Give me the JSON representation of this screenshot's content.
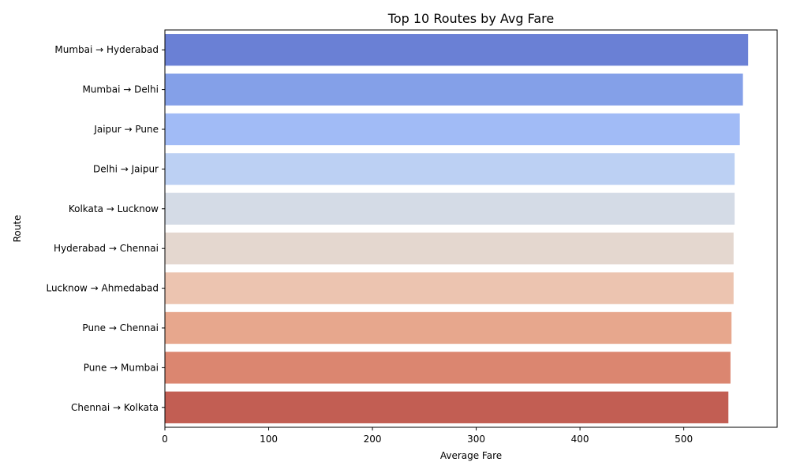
{
  "chart_data": {
    "type": "bar",
    "orientation": "horizontal",
    "title": "Top 10 Routes by Avg Fare",
    "xlabel": "Average Fare",
    "ylabel": "Route",
    "xlim": [
      0,
      590
    ],
    "xticks": [
      "0",
      "100",
      "200",
      "300",
      "400",
      "500"
    ],
    "grid": false,
    "legend": "none",
    "categories": [
      "Mumbai → Hyderabad",
      "Mumbai → Delhi",
      "Jaipur → Pune",
      "Delhi → Jaipur",
      "Kolkata → Lucknow",
      "Hyderabad → Chennai",
      "Lucknow → Ahmedabad",
      "Pune → Chennai",
      "Pune → Mumbai",
      "Chennai → Kolkata"
    ],
    "values": [
      562,
      557,
      554,
      549,
      549,
      548,
      548,
      546,
      545,
      543
    ],
    "colors": [
      "#6a80d5",
      "#84a0e8",
      "#a1bbf6",
      "#bcd0f3",
      "#d4dbe6",
      "#e4d7cf",
      "#ecc4b0",
      "#e7a78d",
      "#db8670",
      "#c25e53"
    ]
  }
}
